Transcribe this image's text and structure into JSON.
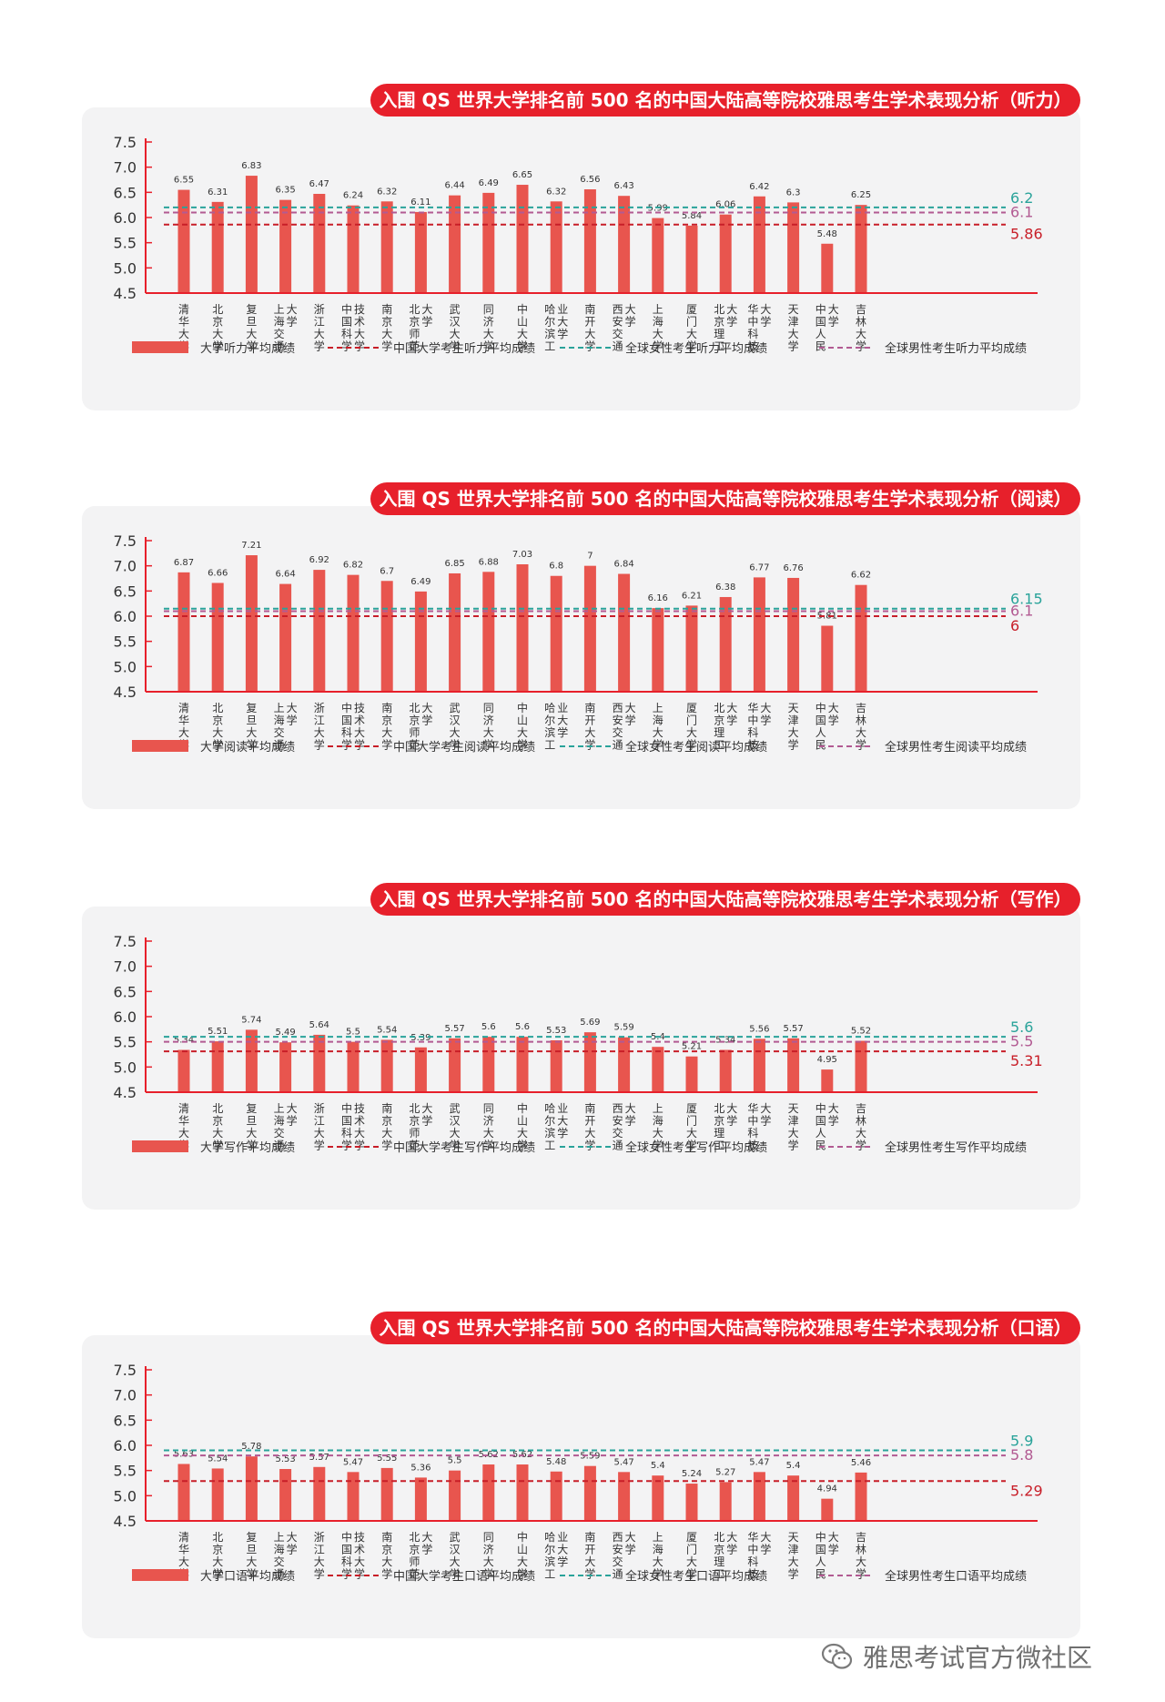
{
  "universities": [
    [
      "清",
      "华",
      "大",
      "学"
    ],
    [
      "北",
      "京",
      "大",
      "学"
    ],
    [
      "复",
      "旦",
      "大",
      "学"
    ],
    [
      "上",
      "海",
      "交",
      "通",
      "大",
      "学"
    ],
    [
      "浙",
      "江",
      "大",
      "学"
    ],
    [
      "中",
      "国",
      "科",
      "学",
      "技",
      "术",
      "大",
      "学"
    ],
    [
      "南",
      "京",
      "大",
      "学"
    ],
    [
      "北",
      "京",
      "师",
      "范",
      "大",
      "学"
    ],
    [
      "武",
      "汉",
      "大",
      "学"
    ],
    [
      "同",
      "济",
      "大",
      "学"
    ],
    [
      "中",
      "山",
      "大",
      "学"
    ],
    [
      "哈",
      "尔",
      "滨",
      "工",
      "业",
      "大",
      "学"
    ],
    [
      "南",
      "开",
      "大",
      "学"
    ],
    [
      "西",
      "安",
      "交",
      "通",
      "大",
      "学"
    ],
    [
      "上",
      "海",
      "大",
      "学"
    ],
    [
      "厦",
      "门",
      "大",
      "学"
    ],
    [
      "北",
      "京",
      "理",
      "工",
      "大",
      "学"
    ],
    [
      "华",
      "中",
      "科",
      "技",
      "大",
      "学"
    ],
    [
      "天",
      "津",
      "大",
      "学"
    ],
    [
      "中",
      "国",
      "人",
      "民",
      "大",
      "学"
    ],
    [
      "吉",
      "林",
      "大",
      "学"
    ]
  ],
  "colors": {
    "bar": "#e8554e",
    "axis": "#e7202b",
    "china_line": "#c81e28",
    "female_line": "#2aa39a",
    "male_line": "#b25a92",
    "banner": "#e7202b"
  },
  "chart_data": [
    {
      "type": "bar",
      "title": "入围 QS 世界大学排名前 500 名的中国大陆高等院校雅思考生学术表现分析（听力）",
      "ylim": [
        4.5,
        7.5
      ],
      "yticks": [
        "4.5",
        "5.0",
        "5.5",
        "6.0",
        "6.5",
        "7.0",
        "7.5"
      ],
      "values": [
        6.55,
        6.31,
        6.83,
        6.35,
        6.47,
        6.24,
        6.32,
        6.11,
        6.44,
        6.49,
        6.65,
        6.32,
        6.56,
        6.43,
        5.99,
        5.84,
        6.06,
        6.42,
        6.3,
        5.48,
        6.25
      ],
      "value_labels": [
        "6.55",
        "6.31",
        "6.83",
        "6.35",
        "6.47",
        "6.24",
        "6.32",
        "6.11",
        "6.44",
        "6.49",
        "6.65",
        "6.32",
        "6.56",
        "6.43",
        "5.99",
        "5.84",
        "6.06",
        "6.42",
        "6.3",
        "5.48",
        "6.25"
      ],
      "reference_lines": [
        {
          "name": "全球女性考生听力平均成绩",
          "value": 6.2,
          "label": "6.2",
          "color": "#2aa39a"
        },
        {
          "name": "全球男性考生听力平均成绩",
          "value": 6.1,
          "label": "6.1",
          "color": "#b25a92"
        },
        {
          "name": "中国大学考生听力平均成绩",
          "value": 5.86,
          "label": "5.86",
          "color": "#c81e28"
        }
      ],
      "legend": {
        "bar": "大学听力平均成绩",
        "china": "中国大学考生听力平均成绩",
        "female": "全球女性考生听力平均成绩",
        "male": "全球男性考生听力平均成绩"
      }
    },
    {
      "type": "bar",
      "title": "入围 QS 世界大学排名前 500 名的中国大陆高等院校雅思考生学术表现分析（阅读）",
      "ylim": [
        4.5,
        7.5
      ],
      "yticks": [
        "4.5",
        "5.0",
        "5.5",
        "6.0",
        "6.5",
        "7.0",
        "7.5"
      ],
      "values": [
        6.87,
        6.66,
        7.21,
        6.64,
        6.92,
        6.82,
        6.7,
        6.49,
        6.85,
        6.88,
        7.03,
        6.8,
        7,
        6.84,
        6.16,
        6.21,
        6.38,
        6.77,
        6.76,
        5.81,
        6.62
      ],
      "value_labels": [
        "6.87",
        "6.66",
        "7.21",
        "6.64",
        "6.92",
        "6.82",
        "6.7",
        "6.49",
        "6.85",
        "6.88",
        "7.03",
        "6.8",
        "7",
        "6.84",
        "6.16",
        "6.21",
        "6.38",
        "6.77",
        "6.76",
        "5.81",
        "6.62"
      ],
      "reference_lines": [
        {
          "name": "全球女性考生阅读平均成绩",
          "value": 6.15,
          "label": "6.15",
          "color": "#2aa39a"
        },
        {
          "name": "全球男性考生阅读平均成绩",
          "value": 6.1,
          "label": "6.1",
          "color": "#b25a92"
        },
        {
          "name": "中国大学考生阅读平均成绩",
          "value": 6.0,
          "label": "6",
          "color": "#c81e28"
        }
      ],
      "legend": {
        "bar": "大学阅读平均成绩",
        "china": "中国大学考生阅读平均成绩",
        "female": "全球女性考生阅读平均成绩",
        "male": "全球男性考生阅读平均成绩"
      }
    },
    {
      "type": "bar",
      "title": "入围 QS 世界大学排名前 500 名的中国大陆高等院校雅思考生学术表现分析（写作）",
      "ylim": [
        4.5,
        7.5
      ],
      "yticks": [
        "4.5",
        "5.0",
        "5.5",
        "6.0",
        "6.5",
        "7.0",
        "7.5"
      ],
      "values": [
        5.34,
        5.51,
        5.74,
        5.49,
        5.64,
        5.5,
        5.54,
        5.39,
        5.57,
        5.6,
        5.6,
        5.53,
        5.69,
        5.59,
        5.4,
        5.21,
        5.34,
        5.56,
        5.57,
        4.95,
        5.52
      ],
      "value_labels": [
        "5.34",
        "5.51",
        "5.74",
        "5.49",
        "5.64",
        "5.5",
        "5.54",
        "5.39",
        "5.57",
        "5.6",
        "5.6",
        "5.53",
        "5.69",
        "5.59",
        "5.4",
        "5.21",
        "5.34",
        "5.56",
        "5.57",
        "4.95",
        "5.52"
      ],
      "reference_lines": [
        {
          "name": "全球女性考生写作平均成绩",
          "value": 5.6,
          "label": "5.6",
          "color": "#2aa39a"
        },
        {
          "name": "全球男性考生写作平均成绩",
          "value": 5.5,
          "label": "5.5",
          "color": "#b25a92"
        },
        {
          "name": "中国大学考生写作平均成绩",
          "value": 5.31,
          "label": "5.31",
          "color": "#c81e28"
        }
      ],
      "legend": {
        "bar": "大学写作平均成绩",
        "china": "中国大学考生写作平均成绩",
        "female": "全球女性考生写作平均成绩",
        "male": "全球男性考生写作平均成绩"
      }
    },
    {
      "type": "bar",
      "title": "入围 QS 世界大学排名前 500 名的中国大陆高等院校雅思考生学术表现分析（口语）",
      "ylim": [
        4.5,
        7.5
      ],
      "yticks": [
        "4.5",
        "5.0",
        "5.5",
        "6.0",
        "6.5",
        "7.0",
        "7.5"
      ],
      "values": [
        5.63,
        5.54,
        5.78,
        5.53,
        5.57,
        5.47,
        5.55,
        5.36,
        5.5,
        5.62,
        5.62,
        5.48,
        5.59,
        5.47,
        5.4,
        5.24,
        5.27,
        5.47,
        5.4,
        4.94,
        5.46
      ],
      "value_labels": [
        "5.63",
        "5.54",
        "5.78",
        "5.53",
        "5.57",
        "5.47",
        "5.55",
        "5.36",
        "5.5",
        "5.62",
        "5.62",
        "5.48",
        "5.59",
        "5.47",
        "5.4",
        "5.24",
        "5.27",
        "5.47",
        "5.4",
        "4.94",
        "5.46"
      ],
      "reference_lines": [
        {
          "name": "全球女性考生口语平均成绩",
          "value": 5.9,
          "label": "5.9",
          "color": "#2aa39a"
        },
        {
          "name": "全球男性考生口语平均成绩",
          "value": 5.8,
          "label": "5.8",
          "color": "#b25a92"
        },
        {
          "name": "中国大学考生口语平均成绩",
          "value": 5.29,
          "label": "5.29",
          "color": "#c81e28"
        }
      ],
      "legend": {
        "bar": "大学口语平均成绩",
        "china": "中国大学考生口语平均成绩",
        "female": "全球女性考生口语平均成绩",
        "male": "全球男性考生口语平均成绩"
      }
    }
  ],
  "watermark": {
    "text": "雅思考试官方微社区",
    "icon": "wechat-icon"
  }
}
